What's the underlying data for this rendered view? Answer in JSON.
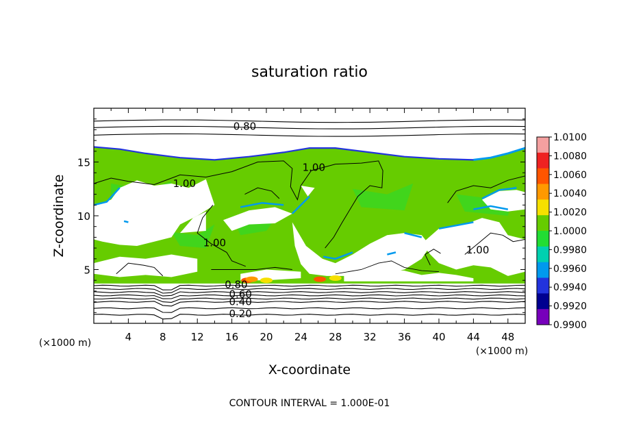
{
  "chart_data": {
    "type": "heatmap",
    "title": "saturation ratio",
    "xlabel": "X-coordinate",
    "ylabel": "Z-coordinate",
    "x_unit": "(×1000 m)",
    "y_unit": "(×1000 m)",
    "xlim": [
      0,
      50
    ],
    "ylim": [
      0,
      20
    ],
    "x_ticks": [
      4,
      8,
      12,
      16,
      20,
      24,
      28,
      32,
      36,
      40,
      44,
      48
    ],
    "y_ticks": [
      5,
      10,
      15
    ],
    "footer": "CONTOUR INTERVAL = 1.000E-01",
    "colorbar": {
      "levels": [
        "1.0100",
        "1.0080",
        "1.0060",
        "1.0040",
        "1.0020",
        "1.0000",
        "0.9980",
        "0.9960",
        "0.9940",
        "0.9920",
        "0.9900"
      ],
      "colors": [
        "#f4a0a0",
        "#ee2222",
        "#ff5500",
        "#ff9900",
        "#f6e000",
        "#66cc00",
        "#22dd33",
        "#00d0b0",
        "#0099ee",
        "#2233dd",
        "#000090",
        "#7700bb"
      ]
    },
    "contour_labels": [
      {
        "text": "0.80",
        "x": 17.5,
        "y": 18.3
      },
      {
        "text": "1.00",
        "x": 25.5,
        "y": 14.5
      },
      {
        "text": "1.00",
        "x": 10.5,
        "y": 13.0
      },
      {
        "text": "1.00",
        "x": 14.0,
        "y": 7.5
      },
      {
        "text": "1.00",
        "x": 44.5,
        "y": 6.8
      },
      {
        "text": "0.80",
        "x": 16.5,
        "y": 3.6
      },
      {
        "text": "0.60",
        "x": 17.0,
        "y": 2.7
      },
      {
        "text": "0.40",
        "x": 17.0,
        "y": 2.0
      },
      {
        "text": "0.20",
        "x": 17.0,
        "y": 0.9
      }
    ],
    "fields": {
      "saturated_layer_z": [
        3.7,
        16.3
      ],
      "cloud_top_z_start": 16.3,
      "isoline_levels_upper": [
        18.8,
        18.2,
        17.5
      ],
      "isoline_levels_lower": [
        3.5,
        3.2,
        2.9,
        2.6,
        2.3,
        2.0,
        1.4,
        0.8
      ]
    }
  }
}
